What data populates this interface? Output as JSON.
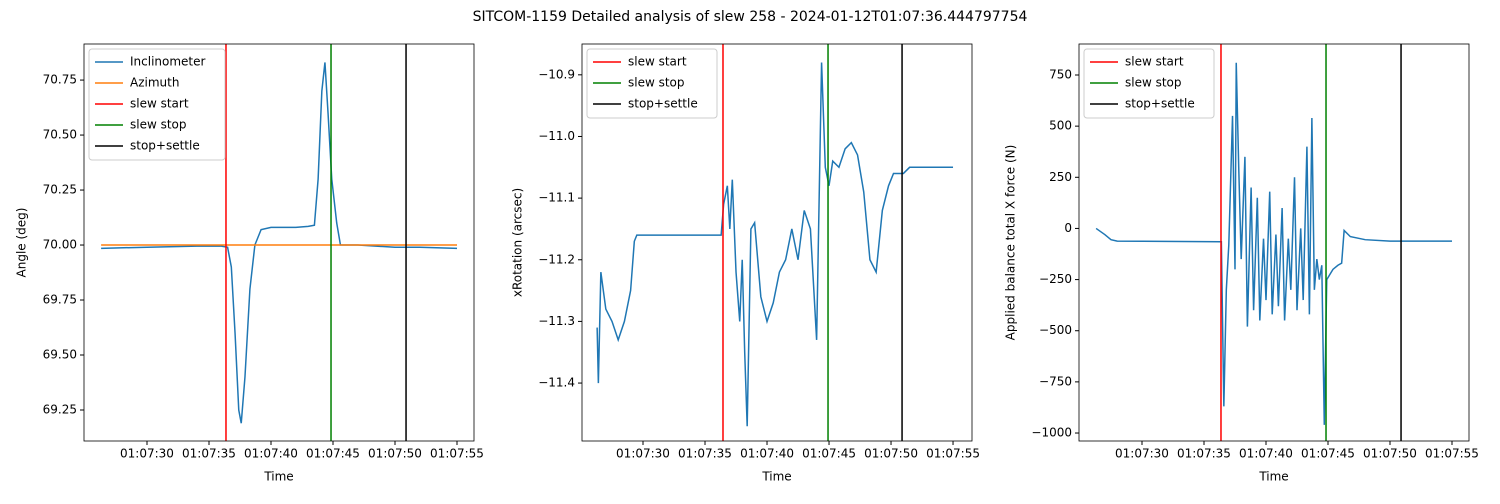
{
  "title": "SITCOM-1159 Detailed analysis of slew 258 - 2024-01-12T01:07:36.444797754",
  "chart_data": [
    {
      "type": "line",
      "xlabel": "Time",
      "ylabel": "Angle (deg)",
      "legend": "upper left",
      "xlim": [
        24.92,
        56.37
      ],
      "ylim": [
        69.109,
        70.914
      ],
      "xticks": [
        {
          "value": 30,
          "label": "01:07:30"
        },
        {
          "value": 35,
          "label": "01:07:35"
        },
        {
          "value": 40,
          "label": "01:07:40"
        },
        {
          "value": 45,
          "label": "01:07:45"
        },
        {
          "value": 50,
          "label": "01:07:50"
        },
        {
          "value": 55,
          "label": "01:07:55"
        }
      ],
      "yticks": [
        70.25,
        {
          "value": 69.5,
          "label": "69.50"
        },
        69.75,
        {
          "value": 70,
          "label": "70.00"
        },
        69.25,
        {
          "value": 70.5,
          "label": "70.50"
        },
        70.75
      ],
      "series": [
        {
          "name": "Inclinometer",
          "color": "#1f77b4",
          "x": [
            26.3,
            30,
            34,
            36,
            36.5,
            36.8,
            37.1,
            37.4,
            37.6,
            37.9,
            38.3,
            38.7,
            39.2,
            40,
            42,
            43,
            43.5,
            43.8,
            44.1,
            44.35,
            44.6,
            44.9,
            45.3,
            45.6,
            47,
            50,
            52,
            55
          ],
          "values": [
            69.985,
            69.99,
            69.995,
            69.995,
            69.99,
            69.9,
            69.6,
            69.25,
            69.19,
            69.4,
            69.8,
            70.0,
            70.07,
            70.08,
            70.08,
            70.085,
            70.09,
            70.3,
            70.7,
            70.83,
            70.6,
            70.3,
            70.1,
            70.0,
            70.0,
            69.99,
            69.99,
            69.985
          ]
        },
        {
          "name": "Azimuth",
          "color": "#ff7f0e",
          "x": [
            26.3,
            55
          ],
          "values": [
            70.0,
            70.0
          ]
        }
      ],
      "vlines": [
        {
          "name": "slew start",
          "color": "#ff0000",
          "x": 36.37
        },
        {
          "name": "slew stop",
          "color": "#008000",
          "x": 44.84
        },
        {
          "name": "stop+settle",
          "color": "#000000",
          "x": 50.89
        }
      ]
    },
    {
      "type": "line",
      "xlabel": "Time",
      "ylabel": "xRotation (arcsec)",
      "legend": "upper left",
      "xlim": [
        25.08,
        56.53
      ],
      "ylim": [
        -11.494,
        -10.85
      ],
      "xticks": [
        {
          "value": 30,
          "label": "01:07:30"
        },
        {
          "value": 35,
          "label": "01:07:35"
        },
        {
          "value": 40,
          "label": "01:07:40"
        },
        {
          "value": 45,
          "label": "01:07:45"
        },
        {
          "value": 50,
          "label": "01:07:50"
        },
        {
          "value": 55,
          "label": "01:07:55"
        }
      ],
      "yticks": [
        {
          "value": -11.4,
          "label": "−11.4"
        },
        {
          "value": -11.3,
          "label": "−11.3"
        },
        {
          "value": -11.2,
          "label": "−11.2"
        },
        {
          "value": -11.1,
          "label": "−11.1"
        },
        {
          "value": -11.0,
          "label": "−11.0"
        },
        {
          "value": -10.9,
          "label": "−10.9"
        }
      ],
      "series": [
        {
          "name": null,
          "color": "#1f77b4",
          "x": [
            26.3,
            26.4,
            26.6,
            27,
            27.5,
            28,
            28.5,
            29,
            29.3,
            29.5,
            36.3,
            36.5,
            36.8,
            37,
            37.2,
            37.5,
            37.8,
            38,
            38.2,
            38.4,
            38.7,
            39,
            39.5,
            40,
            40.5,
            41,
            41.5,
            42,
            42.5,
            43,
            43.5,
            44,
            44.4,
            44.7,
            45,
            45.3,
            45.8,
            46.3,
            46.8,
            47.3,
            47.8,
            48.3,
            48.8,
            49.3,
            49.8,
            50.2,
            51,
            51.5,
            55
          ],
          "values": [
            -11.31,
            -11.4,
            -11.22,
            -11.28,
            -11.3,
            -11.33,
            -11.3,
            -11.25,
            -11.17,
            -11.16,
            -11.16,
            -11.11,
            -11.08,
            -11.15,
            -11.07,
            -11.22,
            -11.3,
            -11.2,
            -11.35,
            -11.47,
            -11.15,
            -11.14,
            -11.26,
            -11.3,
            -11.27,
            -11.22,
            -11.2,
            -11.15,
            -11.2,
            -11.12,
            -11.15,
            -11.33,
            -10.88,
            -11.05,
            -11.08,
            -11.04,
            -11.05,
            -11.02,
            -11.01,
            -11.03,
            -11.09,
            -11.2,
            -11.22,
            -11.12,
            -11.08,
            -11.06,
            -11.06,
            -11.05,
            -11.05
          ]
        }
      ],
      "vlines": [
        {
          "name": "slew start",
          "color": "#ff0000",
          "x": 36.45
        },
        {
          "name": "slew stop",
          "color": "#008000",
          "x": 44.92
        },
        {
          "name": "stop+settle",
          "color": "#000000",
          "x": 50.89
        }
      ]
    },
    {
      "type": "line",
      "xlabel": "Time",
      "ylabel": "Applied balance total X force (N)",
      "legend": "upper left",
      "xlim": [
        24.92,
        56.37
      ],
      "ylim": [
        -1039,
        901.5
      ],
      "xticks": [
        {
          "value": 30,
          "label": "01:07:30"
        },
        {
          "value": 35,
          "label": "01:07:35"
        },
        {
          "value": 40,
          "label": "01:07:40"
        },
        {
          "value": 45,
          "label": "01:07:45"
        },
        {
          "value": 50,
          "label": "01:07:50"
        },
        {
          "value": 55,
          "label": "01:07:55"
        }
      ],
      "yticks": [
        {
          "value": -1000,
          "label": "−1000"
        },
        {
          "value": -750,
          "label": "−750"
        },
        {
          "value": -500,
          "label": "−500"
        },
        {
          "value": -250,
          "label": "−250"
        },
        0,
        250,
        500,
        750
      ],
      "series": [
        {
          "name": null,
          "color": "#1f77b4",
          "x": [
            26.3,
            27,
            27.5,
            28,
            36.4,
            36.6,
            36.8,
            37,
            37.3,
            37.5,
            37.6,
            37.8,
            38,
            38.3,
            38.5,
            38.8,
            39,
            39.3,
            39.5,
            39.8,
            40,
            40.3,
            40.5,
            40.8,
            41,
            41.3,
            41.5,
            41.8,
            42,
            42.3,
            42.5,
            42.8,
            43,
            43.3,
            43.5,
            43.7,
            43.9,
            44.1,
            44.3,
            44.5,
            44.7,
            44.9,
            45.1,
            45.4,
            45.8,
            46.1,
            46.3,
            46.8,
            48,
            50,
            55
          ],
          "values": [
            0,
            -30,
            -55,
            -62,
            -65,
            -870,
            -300,
            -80,
            550,
            -200,
            810,
            300,
            -150,
            350,
            -480,
            200,
            -400,
            150,
            -450,
            -50,
            -350,
            180,
            -420,
            -30,
            -380,
            100,
            -450,
            -50,
            -300,
            250,
            -400,
            0,
            -350,
            400,
            -420,
            540,
            -300,
            -150,
            -250,
            -180,
            -960,
            -250,
            -230,
            -200,
            -180,
            -170,
            -10,
            -40,
            -55,
            -62,
            -62
          ]
        }
      ],
      "vlines": [
        {
          "name": "slew start",
          "color": "#ff0000",
          "x": 36.37
        },
        {
          "name": "slew stop",
          "color": "#008000",
          "x": 44.84
        },
        {
          "name": "stop+settle",
          "color": "#000000",
          "x": 50.89
        }
      ]
    }
  ]
}
